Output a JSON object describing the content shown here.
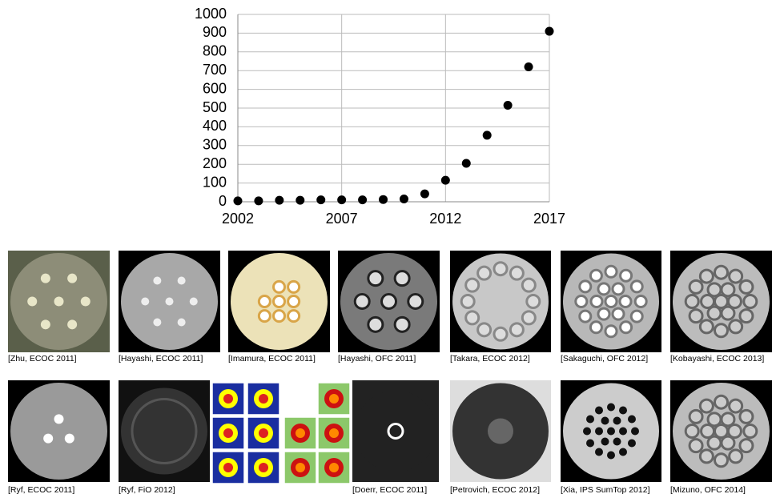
{
  "chart_data": {
    "type": "scatter",
    "x": [
      2002,
      2003,
      2004,
      2005,
      2006,
      2007,
      2008,
      2009,
      2010,
      2011,
      2012,
      2013,
      2014,
      2015,
      2016,
      2017
    ],
    "values": [
      5,
      5,
      8,
      8,
      10,
      10,
      10,
      12,
      15,
      42,
      115,
      205,
      355,
      515,
      720,
      910
    ],
    "color": "#000000",
    "xlim": [
      2002,
      2017
    ],
    "xticks": [
      2002,
      2007,
      2012,
      2017
    ],
    "ylim": [
      0,
      1000
    ],
    "yticks": [
      0,
      100,
      200,
      300,
      400,
      500,
      600,
      700,
      800,
      900,
      1000
    ],
    "grid": true
  },
  "captions": [
    "[Zhu, ECOC 2011]",
    "[Hayashi, ECOC 2011]",
    "[Imamura, ECOC 2011]",
    "[Hayashi, OFC 2011]",
    "[Takara, ECOC 2012]",
    "[Sakaguchi, OFC 2012]",
    "[Kobayashi, ECOC 2013]",
    "[Ryf, ECOC 2011]",
    "[Ryf, FiO 2012]",
    "[Doerr, ECOC 2011]",
    "[Petrovich, ECOC 2012]",
    "[Xia, IPS SumTop 2012]",
    "[Mizuno, OFC 2014]"
  ]
}
